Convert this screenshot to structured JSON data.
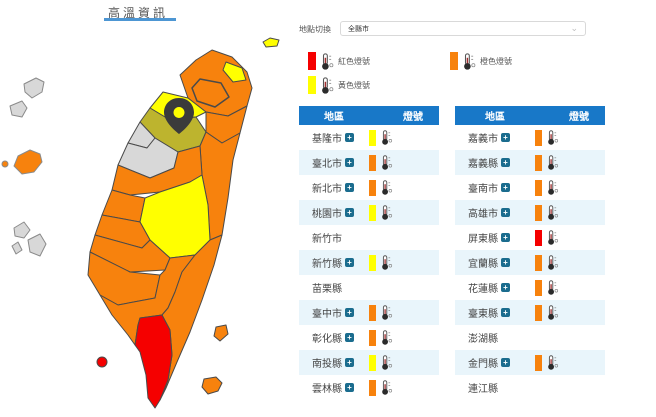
{
  "title": "高溫資訊",
  "location_switcher": {
    "label": "地點切換",
    "value": "全縣市"
  },
  "legend": [
    {
      "label": "紅色燈號",
      "level": "red"
    },
    {
      "label": "橙色燈號",
      "level": "orange"
    },
    {
      "label": "黃色燈號",
      "level": "yellow"
    }
  ],
  "tables": [
    {
      "headers": {
        "area": "地區",
        "signal": "燈號"
      },
      "rows": [
        {
          "name": "基隆市",
          "expandable": true,
          "signal": "yellow"
        },
        {
          "name": "臺北市",
          "expandable": true,
          "signal": "orange"
        },
        {
          "name": "新北市",
          "expandable": true,
          "signal": "orange"
        },
        {
          "name": "桃園市",
          "expandable": true,
          "signal": "yellow"
        },
        {
          "name": "新竹市",
          "expandable": false,
          "signal": null
        },
        {
          "name": "新竹縣",
          "expandable": true,
          "signal": "yellow"
        },
        {
          "name": "苗栗縣",
          "expandable": false,
          "signal": null
        },
        {
          "name": "臺中市",
          "expandable": true,
          "signal": "orange"
        },
        {
          "name": "彰化縣",
          "expandable": true,
          "signal": "orange"
        },
        {
          "name": "南投縣",
          "expandable": true,
          "signal": "yellow"
        },
        {
          "name": "雲林縣",
          "expandable": true,
          "signal": "orange"
        }
      ]
    },
    {
      "headers": {
        "area": "地區",
        "signal": "燈號"
      },
      "rows": [
        {
          "name": "嘉義市",
          "expandable": true,
          "signal": "orange"
        },
        {
          "name": "嘉義縣",
          "expandable": true,
          "signal": "orange"
        },
        {
          "name": "臺南市",
          "expandable": true,
          "signal": "orange"
        },
        {
          "name": "高雄市",
          "expandable": true,
          "signal": "orange"
        },
        {
          "name": "屏東縣",
          "expandable": true,
          "signal": "red"
        },
        {
          "name": "宜蘭縣",
          "expandable": true,
          "signal": "orange"
        },
        {
          "name": "花蓮縣",
          "expandable": true,
          "signal": "orange"
        },
        {
          "name": "臺東縣",
          "expandable": true,
          "signal": "orange"
        },
        {
          "name": "澎湖縣",
          "expandable": false,
          "signal": null
        },
        {
          "name": "金門縣",
          "expandable": true,
          "signal": "orange"
        },
        {
          "name": "連江縣",
          "expandable": false,
          "signal": null
        }
      ]
    }
  ],
  "map": {
    "pin_region": "hsinchu-county",
    "regions": {
      "new-taipei": "orange",
      "taipei": "orange",
      "keelung": "yellow",
      "keelung-islet": "yellow",
      "yilan": "orange",
      "taoyuan": "yellow",
      "hsinchu-county": "yellow_selected",
      "hsinchu-city": "none",
      "miaoli": "none",
      "taichung": "orange",
      "changhua": "orange",
      "nantou": "yellow",
      "yunlin": "orange",
      "chiayi": "orange",
      "tainan": "orange",
      "kaohsiung": "orange",
      "pingtung": "red",
      "hualien": "orange",
      "taitung": "orange",
      "penghu": "none",
      "kinmen": "orange",
      "kinmen-islet": "orange",
      "lienchiang": "none",
      "xiaoliuqiu": "red",
      "green-island": "orange",
      "orchid-island": "orange"
    }
  },
  "colors": {
    "levels": {
      "red": "#F50000",
      "orange": "#F7820D",
      "yellow": "#FFFF00",
      "yellow_selected": "#BDB42E",
      "none": "#D8D8D8"
    },
    "header_blue": "#1878C8",
    "row_alt": "#E9F5FB",
    "title_underline": "#4D96D3",
    "plus_icon": "#1A6C8E",
    "pin": "#3B3B3B",
    "map_border": "#4A4A4A"
  }
}
